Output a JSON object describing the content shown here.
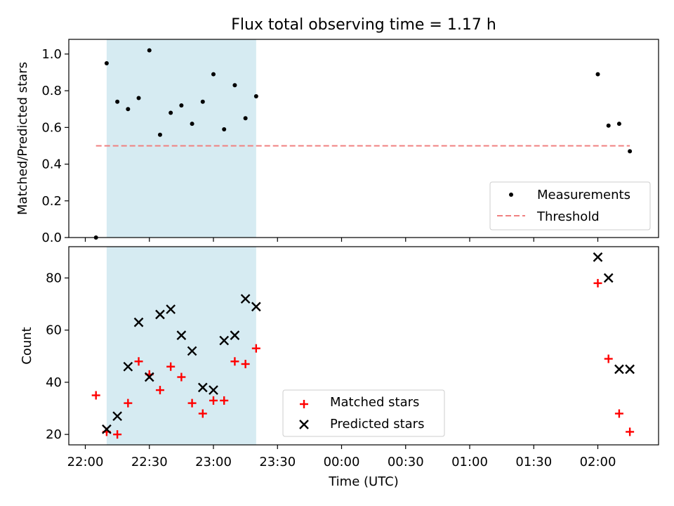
{
  "chart_data": [
    {
      "type": "scatter",
      "title": "Flux total observing time = 1.17 h",
      "ylabel": "Matched/Predicted stars",
      "xlabel": "",
      "ylim": [
        0.0,
        1.08
      ],
      "yticks": [
        "0.0",
        "0.2",
        "0.4",
        "0.6",
        "0.8",
        "1.0"
      ],
      "highlight_span": {
        "start": "22:10",
        "end": "23:20",
        "color": "#add8e6"
      },
      "series": [
        {
          "name": "Measurements",
          "marker": "dot",
          "color": "#000000",
          "points": [
            {
              "x": "22:05",
              "y": 0.0
            },
            {
              "x": "22:10",
              "y": 0.95
            },
            {
              "x": "22:15",
              "y": 0.74
            },
            {
              "x": "22:20",
              "y": 0.7
            },
            {
              "x": "22:25",
              "y": 0.76
            },
            {
              "x": "22:30",
              "y": 1.02
            },
            {
              "x": "22:35",
              "y": 0.56
            },
            {
              "x": "22:40",
              "y": 0.68
            },
            {
              "x": "22:45",
              "y": 0.72
            },
            {
              "x": "22:50",
              "y": 0.62
            },
            {
              "x": "22:55",
              "y": 0.74
            },
            {
              "x": "23:00",
              "y": 0.89
            },
            {
              "x": "23:05",
              "y": 0.59
            },
            {
              "x": "23:10",
              "y": 0.83
            },
            {
              "x": "23:15",
              "y": 0.65
            },
            {
              "x": "23:20",
              "y": 0.77
            },
            {
              "x": "02:00",
              "y": 0.89
            },
            {
              "x": "02:05",
              "y": 0.61
            },
            {
              "x": "02:10",
              "y": 0.62
            },
            {
              "x": "02:15",
              "y": 0.47
            }
          ]
        },
        {
          "name": "Threshold",
          "marker": "dashed-line",
          "color": "#f08080",
          "from": "22:05",
          "to": "02:15",
          "y": 0.5
        }
      ],
      "legend": "lower-right"
    },
    {
      "type": "scatter",
      "title": "",
      "ylabel": "Count",
      "xlabel": "Time (UTC)",
      "ylim": [
        16,
        92
      ],
      "yticks": [
        "20",
        "40",
        "60",
        "80"
      ],
      "xticks": [
        "22:00",
        "22:30",
        "23:00",
        "23:30",
        "00:00",
        "00:30",
        "01:00",
        "01:30",
        "02:00"
      ],
      "highlight_span": {
        "start": "22:10",
        "end": "23:20",
        "color": "#add8e6"
      },
      "series": [
        {
          "name": "Matched stars",
          "marker": "plus",
          "color": "#ff0000",
          "points": [
            {
              "x": "22:05",
              "y": 35
            },
            {
              "x": "22:10",
              "y": 21
            },
            {
              "x": "22:15",
              "y": 20
            },
            {
              "x": "22:20",
              "y": 32
            },
            {
              "x": "22:25",
              "y": 48
            },
            {
              "x": "22:30",
              "y": 43
            },
            {
              "x": "22:35",
              "y": 37
            },
            {
              "x": "22:40",
              "y": 46
            },
            {
              "x": "22:45",
              "y": 42
            },
            {
              "x": "22:50",
              "y": 32
            },
            {
              "x": "22:55",
              "y": 28
            },
            {
              "x": "23:00",
              "y": 33
            },
            {
              "x": "23:05",
              "y": 33
            },
            {
              "x": "23:10",
              "y": 48
            },
            {
              "x": "23:15",
              "y": 47
            },
            {
              "x": "23:20",
              "y": 53
            },
            {
              "x": "02:00",
              "y": 78
            },
            {
              "x": "02:05",
              "y": 49
            },
            {
              "x": "02:10",
              "y": 28
            },
            {
              "x": "02:15",
              "y": 21
            }
          ]
        },
        {
          "name": "Predicted stars",
          "marker": "x",
          "color": "#000000",
          "points": [
            {
              "x": "22:10",
              "y": 22
            },
            {
              "x": "22:15",
              "y": 27
            },
            {
              "x": "22:20",
              "y": 46
            },
            {
              "x": "22:25",
              "y": 63
            },
            {
              "x": "22:30",
              "y": 42
            },
            {
              "x": "22:35",
              "y": 66
            },
            {
              "x": "22:40",
              "y": 68
            },
            {
              "x": "22:45",
              "y": 58
            },
            {
              "x": "22:50",
              "y": 52
            },
            {
              "x": "22:55",
              "y": 38
            },
            {
              "x": "23:00",
              "y": 37
            },
            {
              "x": "23:05",
              "y": 56
            },
            {
              "x": "23:10",
              "y": 58
            },
            {
              "x": "23:15",
              "y": 72
            },
            {
              "x": "23:20",
              "y": 69
            },
            {
              "x": "02:00",
              "y": 88
            },
            {
              "x": "02:05",
              "y": 80
            },
            {
              "x": "02:10",
              "y": 45
            },
            {
              "x": "02:15",
              "y": 45
            }
          ]
        }
      ],
      "legend": "lower-center"
    }
  ]
}
